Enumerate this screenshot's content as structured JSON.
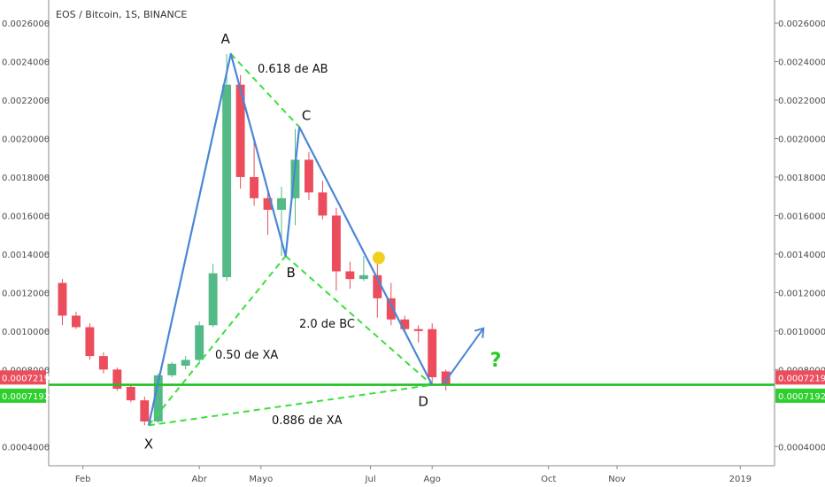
{
  "chart_data": {
    "type": "candlestick",
    "title": "EOS / Bitcoin, 1S, BINANCE",
    "y_range": [
      0.0003,
      0.00272
    ],
    "y_ticks": [
      "0.0026000",
      "0.0024000",
      "0.0022000",
      "0.0020000",
      "0.0018000",
      "0.0016000",
      "0.0014000",
      "0.0012000",
      "0.0010000",
      "0.0008000",
      "0.0004000"
    ],
    "y_tick_values": [
      0.0026,
      0.0024,
      0.0022,
      0.002,
      0.0018,
      0.0016,
      0.0014,
      0.0012,
      0.001,
      0.0008,
      0.0004
    ],
    "x_ticks": [
      {
        "label": "Feb",
        "week": 1.5
      },
      {
        "label": "Abr",
        "week": 10.0
      },
      {
        "label": "Mayo",
        "week": 14.5
      },
      {
        "label": "Jul",
        "week": 22.5
      },
      {
        "label": "Ago",
        "week": 27.0
      },
      {
        "label": "Oct",
        "week": 35.5
      },
      {
        "label": "Nov",
        "week": 40.5
      },
      {
        "label": "2019",
        "week": 49.5
      }
    ],
    "x_range": [
      -1.0,
      52.0
    ],
    "candles": [
      {
        "w": 0,
        "o": 0.00125,
        "h": 0.00127,
        "l": 0.00103,
        "c": 0.00108
      },
      {
        "w": 1,
        "o": 0.00108,
        "h": 0.0011,
        "l": 0.00101,
        "c": 0.00102
      },
      {
        "w": 2,
        "o": 0.00102,
        "h": 0.00104,
        "l": 0.00085,
        "c": 0.00087
      },
      {
        "w": 3,
        "o": 0.00087,
        "h": 0.00089,
        "l": 0.00078,
        "c": 0.0008
      },
      {
        "w": 4,
        "o": 0.0008,
        "h": 0.00081,
        "l": 0.00069,
        "c": 0.0007
      },
      {
        "w": 5,
        "o": 0.00071,
        "h": 0.00072,
        "l": 0.00063,
        "c": 0.00064
      },
      {
        "w": 6,
        "o": 0.00064,
        "h": 0.00066,
        "l": 0.00051,
        "c": 0.00053
      },
      {
        "w": 7,
        "o": 0.00053,
        "h": 0.00078,
        "l": 0.00052,
        "c": 0.00077
      },
      {
        "w": 8,
        "o": 0.00077,
        "h": 0.00084,
        "l": 0.00076,
        "c": 0.00083
      },
      {
        "w": 9,
        "o": 0.00082,
        "h": 0.00087,
        "l": 0.0008,
        "c": 0.00085
      },
      {
        "w": 10,
        "o": 0.00085,
        "h": 0.00105,
        "l": 0.00083,
        "c": 0.00103
      },
      {
        "w": 11,
        "o": 0.00103,
        "h": 0.00135,
        "l": 0.00102,
        "c": 0.0013
      },
      {
        "w": 12,
        "o": 0.00128,
        "h": 0.00244,
        "l": 0.00126,
        "c": 0.00228
      },
      {
        "w": 13,
        "o": 0.00228,
        "h": 0.00233,
        "l": 0.00174,
        "c": 0.0018
      },
      {
        "w": 14,
        "o": 0.0018,
        "h": 0.002,
        "l": 0.00165,
        "c": 0.00169
      },
      {
        "w": 15,
        "o": 0.00169,
        "h": 0.00172,
        "l": 0.0015,
        "c": 0.00163
      },
      {
        "w": 16,
        "o": 0.00163,
        "h": 0.00175,
        "l": 0.00139,
        "c": 0.00169
      },
      {
        "w": 17,
        "o": 0.00169,
        "h": 0.00205,
        "l": 0.00155,
        "c": 0.00189
      },
      {
        "w": 18,
        "o": 0.00189,
        "h": 0.00193,
        "l": 0.00168,
        "c": 0.00172
      },
      {
        "w": 19,
        "o": 0.00172,
        "h": 0.00178,
        "l": 0.00158,
        "c": 0.0016
      },
      {
        "w": 20,
        "o": 0.0016,
        "h": 0.00164,
        "l": 0.00121,
        "c": 0.00131
      },
      {
        "w": 21,
        "o": 0.00131,
        "h": 0.00136,
        "l": 0.00122,
        "c": 0.00127
      },
      {
        "w": 22,
        "o": 0.00127,
        "h": 0.00139,
        "l": 0.00126,
        "c": 0.00129
      },
      {
        "w": 23,
        "o": 0.00129,
        "h": 0.00135,
        "l": 0.00107,
        "c": 0.00117
      },
      {
        "w": 24,
        "o": 0.00117,
        "h": 0.00125,
        "l": 0.00103,
        "c": 0.00106
      },
      {
        "w": 25,
        "o": 0.00106,
        "h": 0.00108,
        "l": 0.00099,
        "c": 0.00101
      },
      {
        "w": 26,
        "o": 0.00101,
        "h": 0.00103,
        "l": 0.00094,
        "c": 0.001
      },
      {
        "w": 27,
        "o": 0.00101,
        "h": 0.00104,
        "l": 0.00072,
        "c": 0.00076
      },
      {
        "w": 28,
        "o": 0.00079,
        "h": 0.0008,
        "l": 0.00069,
        "c": 0.00072
      }
    ],
    "colors": {
      "up": "#53b987",
      "down": "#eb4d5c",
      "pattern_line": "#4a86d6",
      "dashed": "#39e03a",
      "support": "#22bf22",
      "marker": "#f2cf1f",
      "arrow": "#4a86d6",
      "question": "#22cc22"
    },
    "support_levels": [
      {
        "label": "0.0007219",
        "value": 0.0007219,
        "bg": "#eb4d5c"
      },
      {
        "label": "0.0007192",
        "value": 0.0007192,
        "bg": "#2ccf2c"
      }
    ],
    "pattern_points": [
      {
        "name": "X",
        "w": 6.3,
        "v": 0.00051
      },
      {
        "name": "A",
        "w": 12.3,
        "v": 0.00244
      },
      {
        "name": "B",
        "w": 16.3,
        "v": 0.00139
      },
      {
        "name": "C",
        "w": 17.3,
        "v": 0.00206
      },
      {
        "name": "D",
        "w": 27.0,
        "v": 0.00072
      }
    ],
    "annotations": [
      "0.618 de AB",
      "0.50 de XA",
      "2.0 de BC",
      "0.886 de XA",
      "?"
    ]
  }
}
